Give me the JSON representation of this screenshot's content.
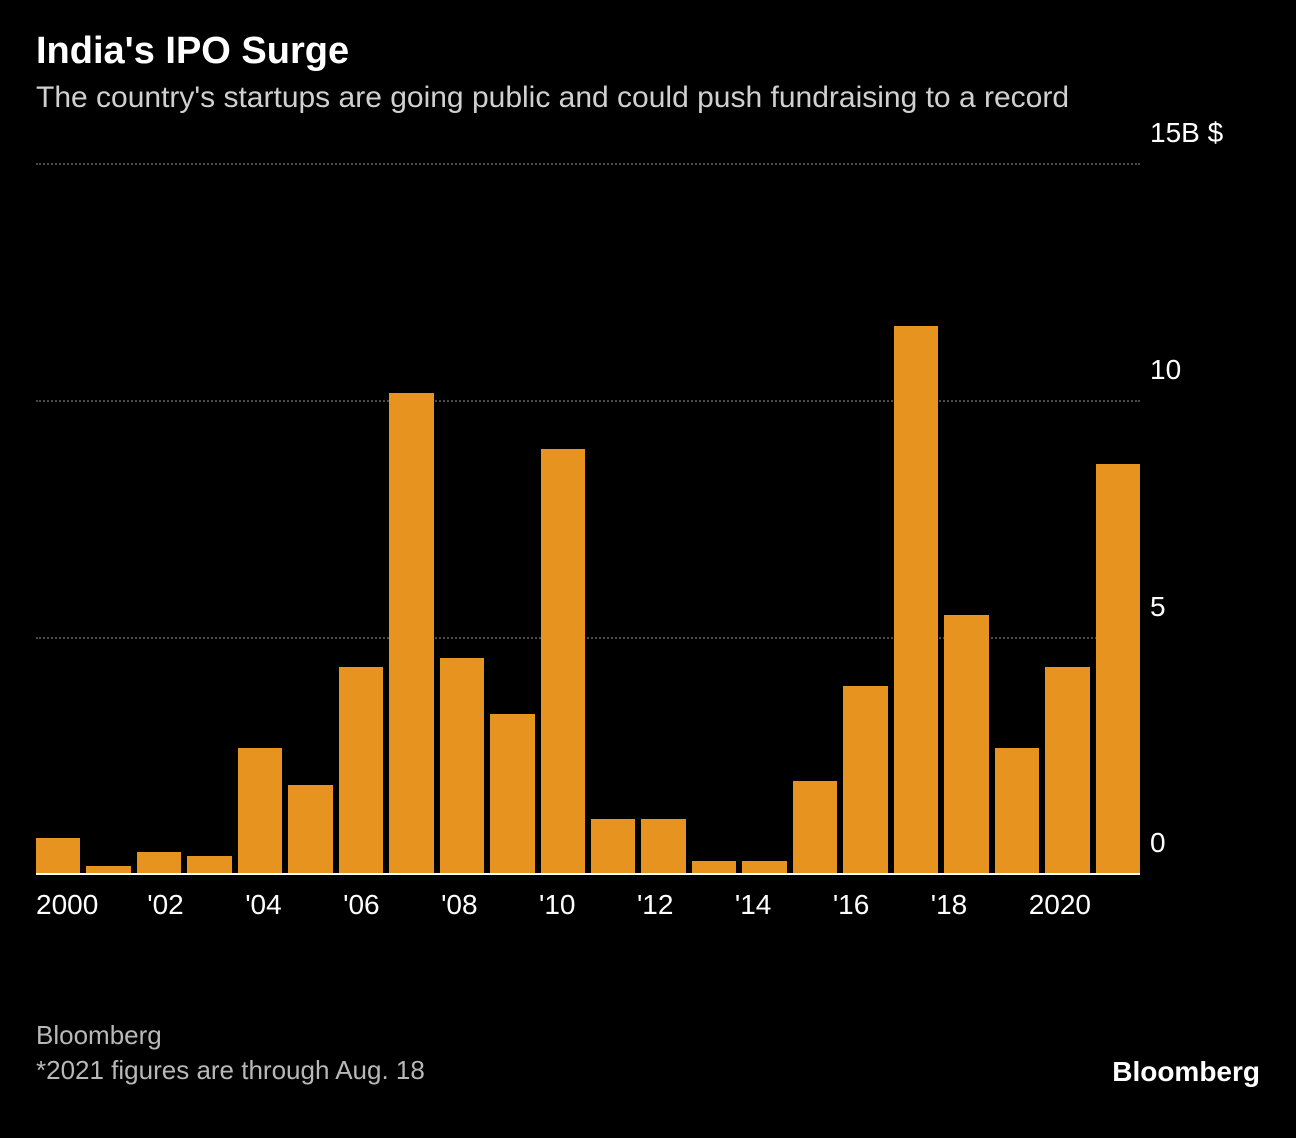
{
  "header": {
    "title": "India's IPO Surge",
    "subtitle": "The country's startups are going public and could push fundraising to a record"
  },
  "chart": {
    "type": "bar",
    "bar_color": "#e6931f",
    "background_color": "#000000",
    "grid_color": "#4a4a4a",
    "baseline_color": "#ffffff",
    "text_color": "#ffffff",
    "ylim": [
      0,
      15
    ],
    "yticks": [
      0,
      5,
      10,
      15
    ],
    "ytick_labels": [
      "0",
      "5",
      "10",
      "15B $"
    ],
    "years": [
      2000,
      2001,
      2002,
      2003,
      2004,
      2005,
      2006,
      2007,
      2008,
      2009,
      2010,
      2011,
      2012,
      2013,
      2014,
      2015,
      2016,
      2017,
      2018,
      2019,
      2020,
      2021
    ],
    "values": [
      0.8,
      0.2,
      0.5,
      0.4,
      2.7,
      1.9,
      4.4,
      10.2,
      4.6,
      3.4,
      9.0,
      1.2,
      1.2,
      0.3,
      0.3,
      2.0,
      4.0,
      11.6,
      5.5,
      2.7,
      4.4,
      8.7
    ],
    "xlabels": [
      "2000",
      "",
      "'02",
      "",
      "'04",
      "",
      "'06",
      "",
      "'08",
      "",
      "'10",
      "",
      "'12",
      "",
      "'14",
      "",
      "'16",
      "",
      "'18",
      "",
      "2020",
      ""
    ],
    "title_fontsize": 38,
    "subtitle_fontsize": 30,
    "axis_fontsize": 28
  },
  "footer": {
    "source": "Bloomberg",
    "note": "*2021 figures are through Aug. 18",
    "brand": "Bloomberg"
  }
}
